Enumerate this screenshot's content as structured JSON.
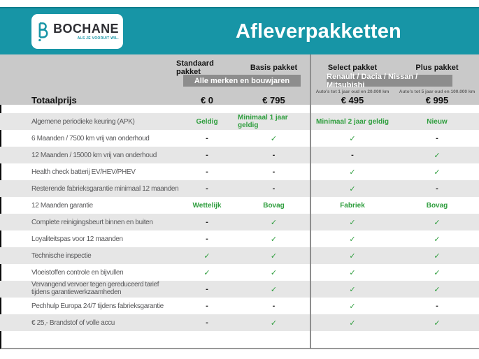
{
  "header": {
    "title": "Afleverpakketten",
    "logo_name": "BOCHANE",
    "logo_tagline": "ALS JE VOORUIT WIL."
  },
  "table": {
    "columns": [
      "Standaard pakket",
      "Basis pakket",
      "Select pakket",
      "Plus pakket"
    ],
    "badges": {
      "left": "Alle merken en bouwjaren",
      "right": "Renault / Dacia / Nissan / Mitsubishi"
    },
    "subnotes": [
      "Auto's tot 1 jaar oud en 20.000 km",
      "Auto's tot 5 jaar oud en 100.000 km"
    ],
    "total_label": "Totaalprijs",
    "prices": [
      "€ 0",
      "€ 795",
      "€ 495",
      "€ 995"
    ],
    "rows": [
      {
        "label": "Algemene periodieke keuring (APK)",
        "values": [
          "Geldig",
          "Minimaal 1 jaar geldig",
          "Minimaal 2 jaar geldig",
          "Nieuw"
        ]
      },
      {
        "label": "6 Maanden / 7500 km vrij van onderhoud",
        "values": [
          "-",
          "✓",
          "✓",
          "-"
        ]
      },
      {
        "label": "12 Maanden / 15000 km vrij van onderhoud",
        "values": [
          "-",
          "-",
          "-",
          "✓"
        ]
      },
      {
        "label": "Health check batterij EV/HEV/PHEV",
        "values": [
          "-",
          "-",
          "✓",
          "✓"
        ]
      },
      {
        "label": "Resterende fabrieksgarantie minimaal 12 maanden",
        "values": [
          "-",
          "-",
          "✓",
          "-"
        ]
      },
      {
        "label": "12 Maanden  garantie",
        "values": [
          "Wettelijk",
          "Bovag",
          "Fabriek",
          "Bovag"
        ]
      },
      {
        "label": "Complete reinigingsbeurt binnen en buiten",
        "values": [
          "-",
          "✓",
          "✓",
          "✓"
        ]
      },
      {
        "label": "Loyaliteitspas voor 12 maanden",
        "values": [
          "-",
          "✓",
          "✓",
          "✓"
        ]
      },
      {
        "label": "Technische inspectie",
        "values": [
          "✓",
          "✓",
          "✓",
          "✓"
        ]
      },
      {
        "label": "Vloeistoffen controle en bijvullen",
        "values": [
          "✓",
          "✓",
          "✓",
          "✓"
        ]
      },
      {
        "label": "Vervangend vervoer tegen gereduceerd tarief tijdens garantiewerkzaamheden",
        "values": [
          "-",
          "✓",
          "✓",
          "✓"
        ]
      },
      {
        "label": "Pechhulp Europa 24/7 tijdens fabrieksgarantie",
        "values": [
          "-",
          "-",
          "✓",
          "-"
        ]
      },
      {
        "label": "€ 25,- Brandstof of  volle accu",
        "values": [
          "-",
          "✓",
          "✓",
          "✓"
        ]
      }
    ]
  },
  "colors": {
    "teal": "#1795A6",
    "header_gray": "#C9C9C9",
    "row_gray": "#E6E6E6",
    "badge_gray": "#8D8D8D",
    "green": "#2F9E3E",
    "title_text": "#FFFFFF"
  }
}
